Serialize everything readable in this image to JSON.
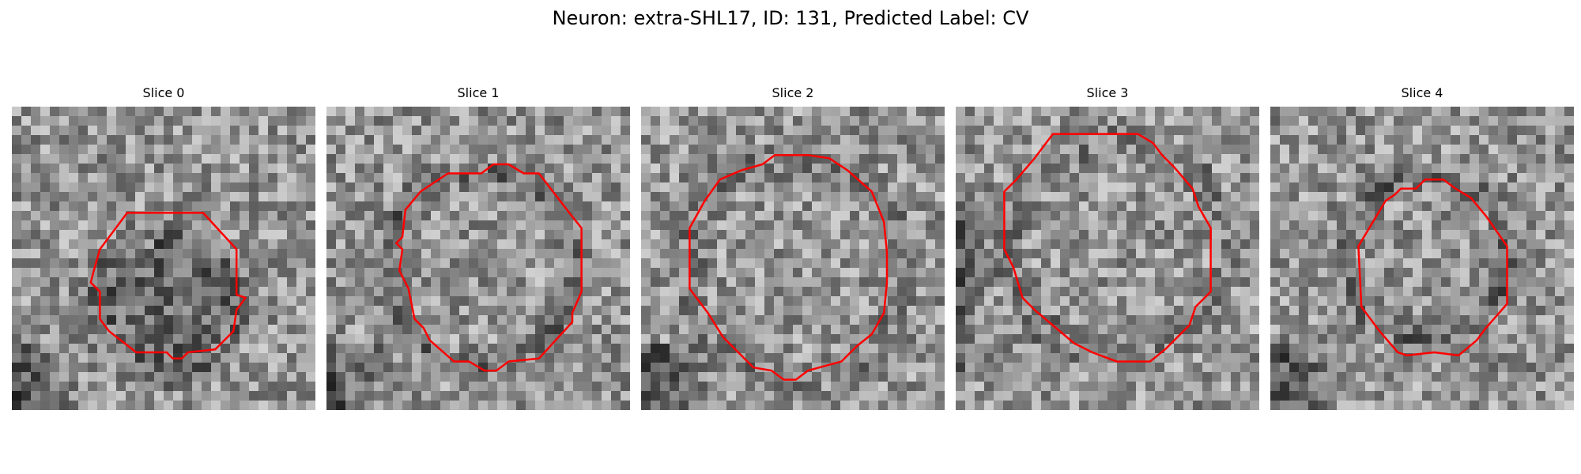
{
  "figure": {
    "title": "Neuron: extra-SHL17, ID: 131, Predicted Label: CV",
    "contour_color": "#ff0000"
  },
  "panels": [
    {
      "title": "Slice 0",
      "seed": 17,
      "ring_dark": true,
      "center_dark": true,
      "corner_dark": "bottom-left",
      "contour": [
        [
          0.38,
          0.35
        ],
        [
          0.63,
          0.35
        ],
        [
          0.74,
          0.47
        ],
        [
          0.74,
          0.62
        ],
        [
          0.77,
          0.63
        ],
        [
          0.74,
          0.67
        ],
        [
          0.73,
          0.74
        ],
        [
          0.67,
          0.8
        ],
        [
          0.58,
          0.81
        ],
        [
          0.56,
          0.83
        ],
        [
          0.53,
          0.83
        ],
        [
          0.51,
          0.81
        ],
        [
          0.41,
          0.81
        ],
        [
          0.32,
          0.74
        ],
        [
          0.29,
          0.7
        ],
        [
          0.29,
          0.61
        ],
        [
          0.26,
          0.58
        ],
        [
          0.27,
          0.54
        ],
        [
          0.29,
          0.47
        ]
      ]
    },
    {
      "title": "Slice 1",
      "seed": 29,
      "ring_dark": true,
      "center_dark": false,
      "corner_dark": "bottom-left",
      "contour": [
        [
          0.4,
          0.22
        ],
        [
          0.51,
          0.22
        ],
        [
          0.55,
          0.19
        ],
        [
          0.6,
          0.19
        ],
        [
          0.65,
          0.22
        ],
        [
          0.7,
          0.22
        ],
        [
          0.8,
          0.35
        ],
        [
          0.84,
          0.4
        ],
        [
          0.84,
          0.61
        ],
        [
          0.81,
          0.68
        ],
        [
          0.81,
          0.71
        ],
        [
          0.7,
          0.83
        ],
        [
          0.6,
          0.84
        ],
        [
          0.56,
          0.87
        ],
        [
          0.52,
          0.87
        ],
        [
          0.47,
          0.84
        ],
        [
          0.42,
          0.84
        ],
        [
          0.34,
          0.77
        ],
        [
          0.32,
          0.73
        ],
        [
          0.29,
          0.7
        ],
        [
          0.27,
          0.6
        ],
        [
          0.24,
          0.54
        ],
        [
          0.25,
          0.47
        ],
        [
          0.23,
          0.45
        ],
        [
          0.25,
          0.43
        ],
        [
          0.26,
          0.34
        ],
        [
          0.31,
          0.28
        ]
      ]
    },
    {
      "title": "Slice 2",
      "seed": 43,
      "ring_dark": false,
      "center_dark": false,
      "corner_dark": "bottom-left",
      "contour": [
        [
          0.4,
          0.19
        ],
        [
          0.44,
          0.16
        ],
        [
          0.55,
          0.16
        ],
        [
          0.62,
          0.17
        ],
        [
          0.68,
          0.21
        ],
        [
          0.76,
          0.28
        ],
        [
          0.8,
          0.38
        ],
        [
          0.81,
          0.48
        ],
        [
          0.81,
          0.58
        ],
        [
          0.8,
          0.68
        ],
        [
          0.76,
          0.75
        ],
        [
          0.71,
          0.79
        ],
        [
          0.66,
          0.84
        ],
        [
          0.55,
          0.87
        ],
        [
          0.51,
          0.9
        ],
        [
          0.47,
          0.9
        ],
        [
          0.43,
          0.87
        ],
        [
          0.37,
          0.86
        ],
        [
          0.27,
          0.76
        ],
        [
          0.22,
          0.68
        ],
        [
          0.16,
          0.6
        ],
        [
          0.16,
          0.4
        ],
        [
          0.21,
          0.31
        ],
        [
          0.26,
          0.24
        ],
        [
          0.33,
          0.21
        ]
      ]
    },
    {
      "title": "Slice 3",
      "seed": 61,
      "ring_dark": false,
      "center_dark": false,
      "corner_dark": "left",
      "contour": [
        [
          0.32,
          0.09
        ],
        [
          0.6,
          0.09
        ],
        [
          0.65,
          0.12
        ],
        [
          0.68,
          0.16
        ],
        [
          0.72,
          0.2
        ],
        [
          0.78,
          0.27
        ],
        [
          0.8,
          0.33
        ],
        [
          0.84,
          0.4
        ],
        [
          0.84,
          0.51
        ],
        [
          0.84,
          0.61
        ],
        [
          0.79,
          0.66
        ],
        [
          0.77,
          0.72
        ],
        [
          0.69,
          0.8
        ],
        [
          0.64,
          0.84
        ],
        [
          0.53,
          0.84
        ],
        [
          0.45,
          0.81
        ],
        [
          0.39,
          0.78
        ],
        [
          0.26,
          0.67
        ],
        [
          0.22,
          0.63
        ],
        [
          0.19,
          0.53
        ],
        [
          0.16,
          0.47
        ],
        [
          0.16,
          0.28
        ],
        [
          0.2,
          0.24
        ],
        [
          0.26,
          0.17
        ]
      ]
    },
    {
      "title": "Slice 4",
      "seed": 83,
      "ring_dark": true,
      "center_dark": false,
      "corner_dark": "bottom-left",
      "contour": [
        [
          0.38,
          0.31
        ],
        [
          0.41,
          0.29
        ],
        [
          0.43,
          0.27
        ],
        [
          0.48,
          0.27
        ],
        [
          0.51,
          0.24
        ],
        [
          0.57,
          0.24
        ],
        [
          0.61,
          0.27
        ],
        [
          0.66,
          0.3
        ],
        [
          0.71,
          0.36
        ],
        [
          0.78,
          0.46
        ],
        [
          0.78,
          0.65
        ],
        [
          0.71,
          0.73
        ],
        [
          0.68,
          0.77
        ],
        [
          0.62,
          0.82
        ],
        [
          0.54,
          0.81
        ],
        [
          0.45,
          0.82
        ],
        [
          0.42,
          0.81
        ],
        [
          0.36,
          0.74
        ],
        [
          0.3,
          0.66
        ],
        [
          0.29,
          0.46
        ],
        [
          0.32,
          0.41
        ],
        [
          0.35,
          0.36
        ]
      ]
    }
  ]
}
